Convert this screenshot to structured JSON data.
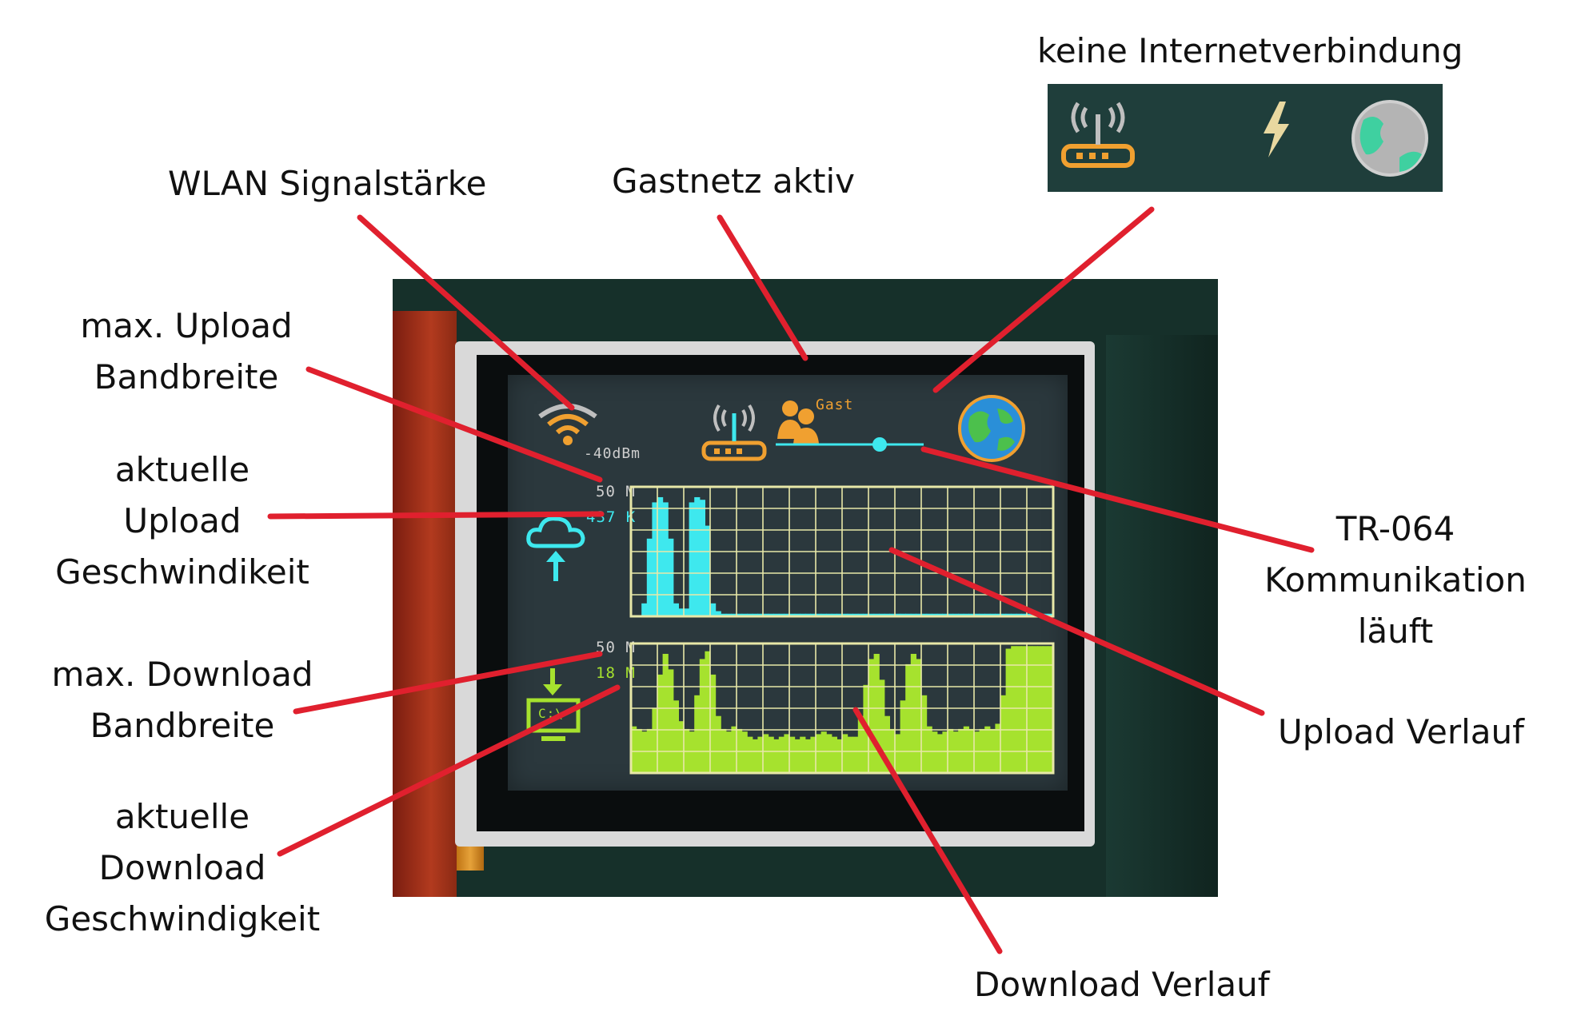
{
  "callouts": {
    "wlan": "WLAN Signalstärke",
    "gast": "Gastnetz aktiv",
    "no_internet": "keine Internetverbindung",
    "max_upload": [
      "max. Upload",
      "Bandbreite"
    ],
    "cur_upload": [
      "aktuelle",
      "Upload",
      "Geschwindikeit"
    ],
    "max_download": [
      "max. Download",
      "Bandbreite"
    ],
    "cur_download": [
      "aktuelle",
      "Download",
      "Geschwindigkeit"
    ],
    "tr064": [
      "TR-064",
      "Kommunikation",
      "läuft"
    ],
    "upload_history": "Upload Verlauf",
    "download_history": "Download Verlauf"
  },
  "display": {
    "signal": "-40dBm",
    "guest_label": "Gast",
    "upload_max": "50 M",
    "upload_current": "437 K",
    "download_max": "50 M",
    "download_current": "18 M",
    "terminal": "C:\\"
  },
  "icons": [
    "wifi-icon",
    "router-icon",
    "guest-users-icon",
    "globe-icon",
    "cloud-upload-icon",
    "download-computer-icon",
    "lightning-icon"
  ],
  "colors": {
    "callout_line": "#e0202e",
    "upload_graph": "#3ee8ee",
    "download_graph": "#a6e22e",
    "grid": "#e8e8a8",
    "label_orange": "#f0a030",
    "screen_bg": "#2b383d"
  },
  "chart_data": [
    {
      "type": "area",
      "ylim": [
        0,
        50
      ],
      "values": [
        0,
        0,
        5,
        30,
        44,
        46,
        44,
        30,
        5,
        3,
        3,
        44,
        46,
        45,
        35,
        5,
        2,
        1,
        1,
        1,
        1,
        1,
        1,
        1,
        1,
        1,
        1,
        1,
        1,
        1,
        1,
        1,
        1,
        1,
        1,
        1,
        1,
        1,
        1,
        1,
        1,
        1,
        1,
        1,
        1,
        1,
        1,
        1,
        1,
        1,
        1,
        1,
        1,
        1,
        1,
        1,
        1,
        1,
        1,
        1,
        1,
        1,
        1,
        1,
        1,
        1,
        1,
        1,
        1,
        1,
        1,
        1,
        1,
        1,
        1,
        1,
        1,
        1,
        1,
        1
      ]
    },
    {
      "type": "area",
      "ylim": [
        0,
        50
      ],
      "values": [
        18,
        17,
        16,
        17,
        25,
        38,
        46,
        40,
        28,
        20,
        17,
        16,
        30,
        44,
        47,
        38,
        22,
        17,
        16,
        18,
        17,
        16,
        14,
        13,
        14,
        15,
        14,
        13,
        14,
        15,
        14,
        13,
        14,
        13,
        14,
        15,
        16,
        15,
        14,
        13,
        15,
        14,
        14,
        22,
        34,
        44,
        46,
        36,
        22,
        17,
        15,
        28,
        42,
        46,
        44,
        30,
        18,
        16,
        15,
        16,
        17,
        16,
        17,
        18,
        17,
        16,
        17,
        18,
        17,
        19,
        30,
        48,
        49,
        49,
        49,
        49,
        49,
        49,
        49,
        49
      ]
    }
  ]
}
